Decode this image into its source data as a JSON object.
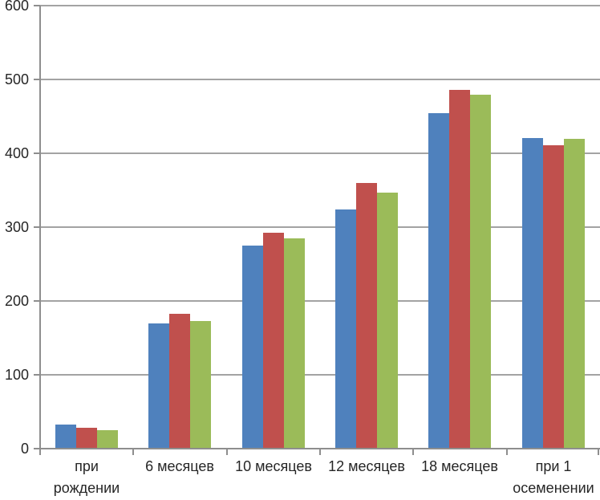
{
  "chart_data": {
    "type": "bar",
    "categories": [
      {
        "label": "при рождении",
        "lines": [
          "при",
          "рождении"
        ]
      },
      {
        "label": "6 месяцев",
        "lines": [
          "6 месяцев"
        ]
      },
      {
        "label": "10 месяцев",
        "lines": [
          "10 месяцев"
        ]
      },
      {
        "label": "12 месяцев",
        "lines": [
          "12 месяцев"
        ]
      },
      {
        "label": "18 месяцев",
        "lines": [
          "18 месяцев"
        ]
      },
      {
        "label": "при 1 осеменении",
        "lines": [
          "при 1",
          "осеменении"
        ]
      }
    ],
    "series": [
      {
        "color": "#4F81BD",
        "values": [
          33,
          170,
          275,
          324,
          454,
          421
        ]
      },
      {
        "color": "#C0504D",
        "values": [
          28,
          183,
          292,
          360,
          486,
          411
        ]
      },
      {
        "color": "#9BBB59",
        "values": [
          25,
          173,
          285,
          347,
          479,
          420
        ]
      }
    ],
    "y_ticks": [
      0,
      100,
      200,
      300,
      400,
      500,
      600
    ],
    "ylim": [
      0,
      600
    ],
    "grid": true,
    "legend": "none",
    "grid_color": "#a3a3a3",
    "axis_color": "#8e8e8e",
    "text_color": "#262626"
  }
}
